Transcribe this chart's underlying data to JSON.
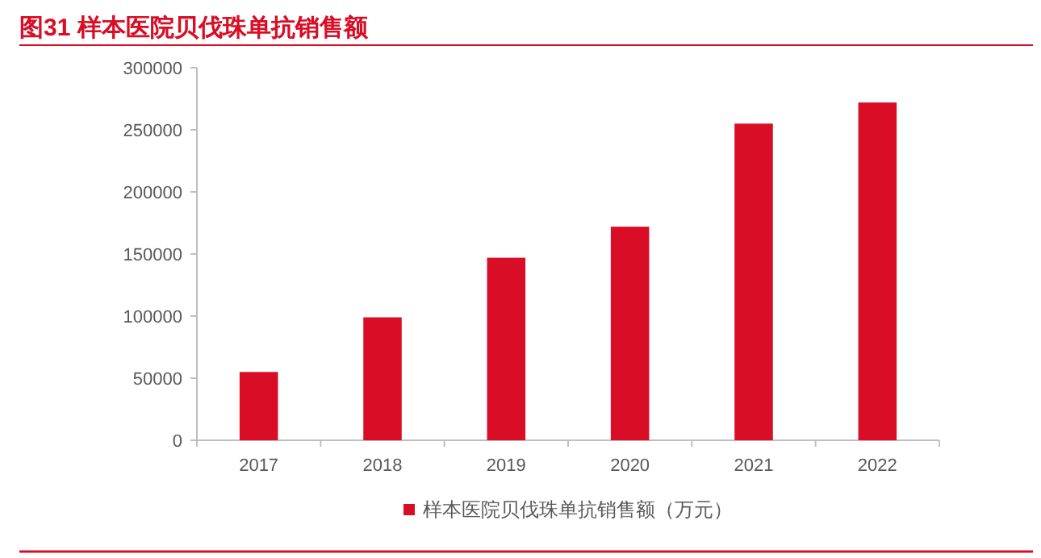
{
  "chart_data": {
    "type": "bar",
    "title": "图31  样本医院贝伐珠单抗销售额",
    "categories": [
      "2017",
      "2018",
      "2019",
      "2020",
      "2021",
      "2022"
    ],
    "series": [
      {
        "name": "样本医院贝伐珠单抗销售额（万元）",
        "color": "#d90d25",
        "values": [
          55000,
          99000,
          147000,
          172000,
          255000,
          272000
        ]
      }
    ],
    "ylim": [
      0,
      300000
    ],
    "yticks": [
      0,
      50000,
      100000,
      150000,
      200000,
      250000,
      300000
    ],
    "grid": false,
    "legend": "bottom"
  }
}
